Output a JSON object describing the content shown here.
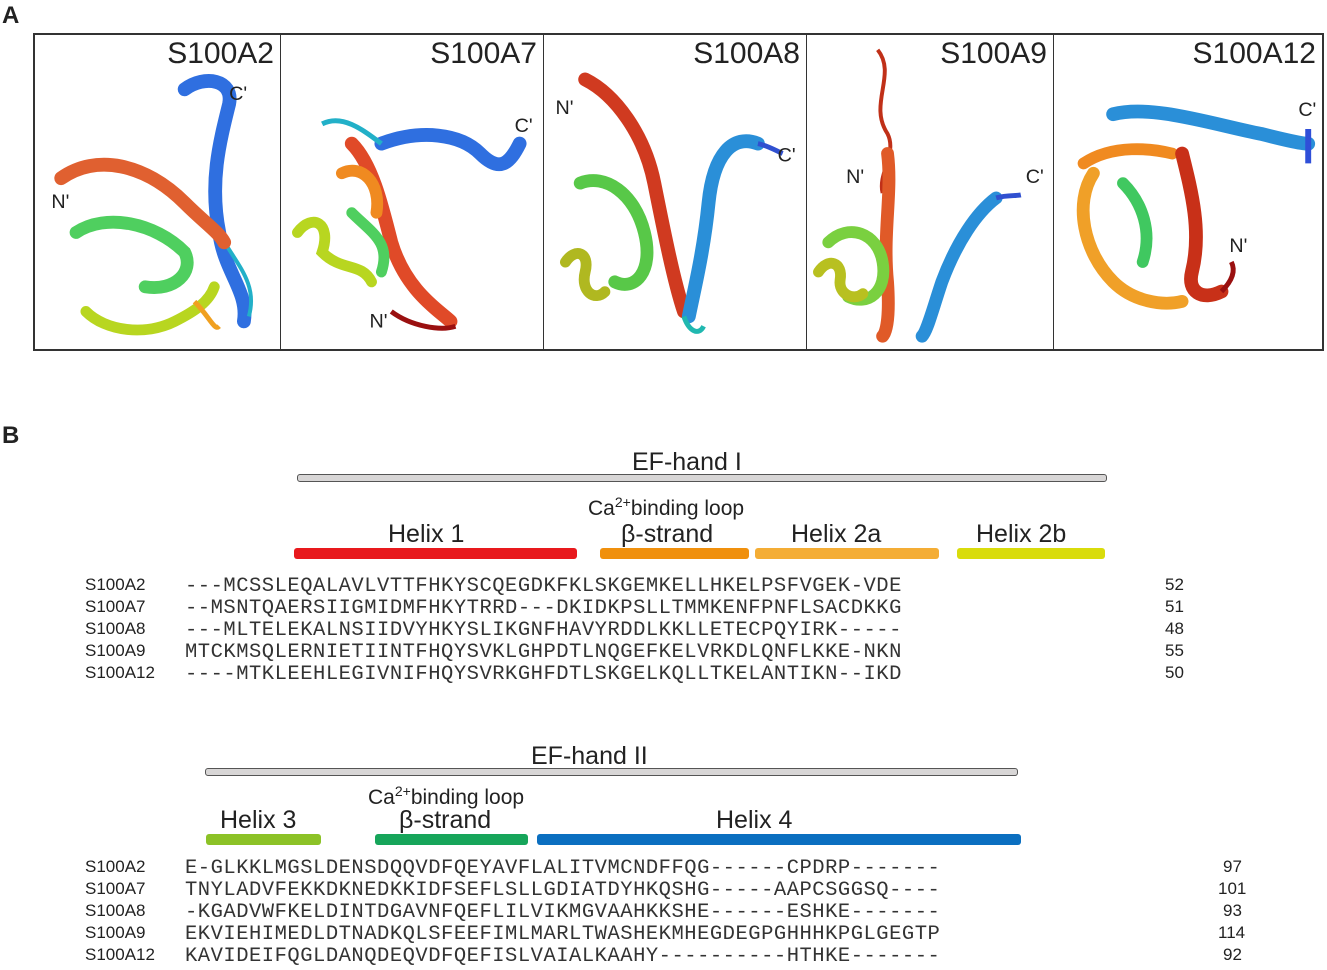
{
  "panel_a": {
    "letter": "A",
    "proteins": [
      {
        "name": "S100A2",
        "n_label": "N'",
        "c_label": "C'"
      },
      {
        "name": "S100A7",
        "n_label": "N'",
        "c_label": "C'"
      },
      {
        "name": "S100A8",
        "n_label": "N'",
        "c_label": "C'"
      },
      {
        "name": "S100A9",
        "n_label": "N'",
        "c_label": "C'"
      },
      {
        "name": "S100A12",
        "n_label": "N'",
        "c_label": "C'"
      }
    ]
  },
  "panel_b": {
    "letter": "B",
    "block1": {
      "ef_hand": "EF-hand I",
      "loop_label_prefix": "Ca",
      "loop_label_sup": "2+",
      "loop_label_suffix": "binding loop",
      "segments": [
        {
          "label": "Helix 1",
          "color": "#e8191d"
        },
        {
          "label": "β-strand",
          "color": "#f0900d"
        },
        {
          "label": "Helix 2a",
          "color": "#f4ad35"
        },
        {
          "label": "Helix 2b",
          "color": "#d9dc0b"
        }
      ],
      "rows": [
        {
          "name": "S100A2",
          "seq": "---MCSSLEQALAVLVTTFHKYSCQEGDKFKLSKGEMKELLHKELPSFVGEK-VDE",
          "num": "52"
        },
        {
          "name": "S100A7",
          "seq": "--MSNTQAERSIIGMIDMFHKYTRRD---DKIDKPSLLTMMKENFPNFLSACDKKG",
          "num": "51"
        },
        {
          "name": "S100A8",
          "seq": "---MLTELEKALNSIIDVYHKYSLIKGNFHAVYRDDLKKLLETECPQYIRK-----",
          "num": "48"
        },
        {
          "name": "S100A9",
          "seq": "MTCKMSQLERNIETIINTFHQYSVKLGHPDTLNQGEFKELVRKDLQNFLKKE-NKN",
          "num": "55"
        },
        {
          "name": "S100A12",
          "seq": "----MTKLEEHLEGIVNIFHQYSVRKGHFDTLSKGELKQLLTKELANTIKN--IKD",
          "num": "50"
        }
      ]
    },
    "block2": {
      "ef_hand": "EF-hand II",
      "loop_label_prefix": "Ca",
      "loop_label_sup": "2+",
      "loop_label_suffix": "binding loop",
      "segments": [
        {
          "label": "Helix 3",
          "color": "#8cc227"
        },
        {
          "label": "β-strand",
          "color": "#16a55a"
        },
        {
          "label": "Helix 4",
          "color": "#0b6fc0"
        }
      ],
      "rows": [
        {
          "name": "S100A2",
          "seq": "E-GLKKLMGSLDENSDQQVDFQEYAVFLALITVMCNDFFQG------CPDRP-------",
          "num": "97"
        },
        {
          "name": "S100A7",
          "seq": "TNYLADVFEKKDKNEDKKIDFSEFLSLLGDIATDYHKQSHG-----AAPCSGGSQ----",
          "num": "101"
        },
        {
          "name": "S100A8",
          "seq": "-KGADVWFKELDINTDGAVNFQEFLILVIKMGVAAHKKSHE------ESHKE-------",
          "num": "93"
        },
        {
          "name": "S100A9",
          "seq": "EKVIEHIMEDLDTNADKQLSFEEFIMLMARLTWASHEKMHEGDEGPGHHHKPGLGEGTP",
          "num": "114"
        },
        {
          "name": "S100A12",
          "seq": "KAVIDEIFQGLDANQDEQVDFQEFISLVAIALKAAHY----------HTHKE-------",
          "num": "92"
        }
      ]
    }
  }
}
